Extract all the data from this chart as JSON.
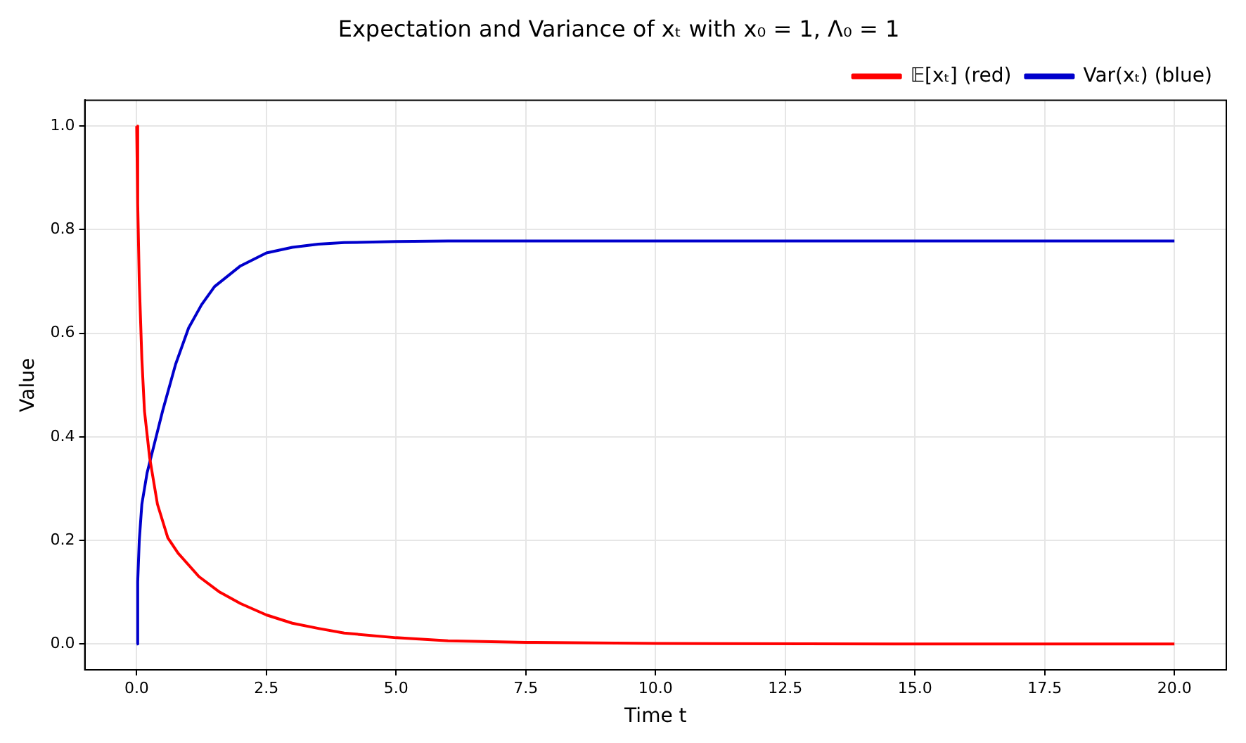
{
  "chart_data": {
    "type": "line",
    "title": "Expectation and Variance of xₜ with x₀ = 1, Λ₀ = 1",
    "xlabel": "Time t",
    "ylabel": "Value",
    "xlim": [
      -1,
      21
    ],
    "xticks": [
      {
        "value": 0,
        "label": "0.0"
      },
      {
        "value": 2.5,
        "label": "2.5"
      },
      {
        "value": 5,
        "label": "5.0"
      },
      {
        "value": 7.5,
        "label": "7.5"
      },
      {
        "value": 10,
        "label": "10.0"
      },
      {
        "value": 12.5,
        "label": "12.5"
      },
      {
        "value": 15,
        "label": "15.0"
      },
      {
        "value": 17.5,
        "label": "17.5"
      },
      {
        "value": 20,
        "label": "20.0"
      }
    ],
    "ylim": [
      -0.05,
      1.05
    ],
    "yticks": [
      {
        "value": 0,
        "label": "0.0"
      },
      {
        "value": 0.2,
        "label": "0.2"
      },
      {
        "value": 0.4,
        "label": "0.4"
      },
      {
        "value": 0.6,
        "label": "0.6"
      },
      {
        "value": 0.8,
        "label": "0.8"
      },
      {
        "value": 1,
        "label": "1.0"
      }
    ],
    "grid": true,
    "legend": "top right",
    "marker": "none",
    "line_style": "solid",
    "series": [
      {
        "name": "𝔼[xₜ] (red)",
        "color": "#ff0000",
        "x": [
          0,
          0.02,
          0.05,
          0.1,
          0.15,
          0.25,
          0.4,
          0.6,
          0.8,
          1.2,
          1.6,
          2,
          2.5,
          3,
          3.5,
          4,
          5,
          6,
          7.5,
          10,
          15,
          20
        ],
        "values": [
          1,
          0.85,
          0.7,
          0.55,
          0.45,
          0.36,
          0.27,
          0.205,
          0.175,
          0.13,
          0.1,
          0.078,
          0.056,
          0.04,
          0.03,
          0.021,
          0.012,
          0.006,
          0.003,
          0.001,
          0,
          0
        ]
      },
      {
        "name": "Var(xₜ) (blue)",
        "color": "#0000cc",
        "x": [
          0,
          0.02,
          0.05,
          0.1,
          0.2,
          0.3,
          0.5,
          0.75,
          1,
          1.25,
          1.5,
          2,
          2.5,
          3,
          3.5,
          4,
          5,
          6,
          10,
          20
        ],
        "values": [
          0,
          0.12,
          0.2,
          0.27,
          0.33,
          0.37,
          0.45,
          0.54,
          0.61,
          0.655,
          0.69,
          0.73,
          0.755,
          0.766,
          0.772,
          0.775,
          0.777,
          0.778,
          0.778,
          0.778
        ]
      }
    ]
  }
}
